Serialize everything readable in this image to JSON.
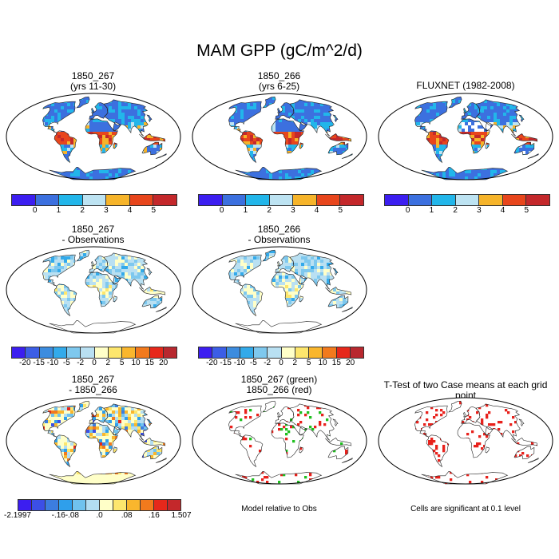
{
  "title": "MAM GPP (gC/m^2/d)",
  "panels": {
    "p1": {
      "line1": "1850_267",
      "line2": "(yrs 11-30)"
    },
    "p2": {
      "line1": "1850_266",
      "line2": "(yrs 6-25)"
    },
    "p3": {
      "line1": "FLUXNET (1982-2008)"
    },
    "p4": {
      "line1": "1850_267",
      "line2": "- Observations"
    },
    "p5": {
      "line1": "1850_266",
      "line2": "- Observations"
    },
    "p6": {
      "line1": "1850_267",
      "line2": "- 1850_266"
    },
    "p7": {
      "line1": "1850_267 (green)",
      "line2": "1850_266 (red)"
    },
    "p8": {
      "line1": "T-Test of two Case means at each grid point"
    }
  },
  "colorbars": {
    "abs": {
      "labels": [
        "0",
        "1",
        "2",
        "3",
        "4",
        "5"
      ],
      "colors": [
        "#3c1ef0",
        "#3c70df",
        "#22b6ea",
        "#bde3f2",
        "#f6b42a",
        "#e8461c",
        "#c4282b"
      ]
    },
    "diff": {
      "labels": [
        "-20",
        "-15",
        "-10",
        "-5",
        "-2",
        "0",
        "2",
        "5",
        "10",
        "15",
        "20"
      ],
      "colors": [
        "#3c1ef0",
        "#3c5ee6",
        "#3c8cdf",
        "#33aaea",
        "#7ec8ee",
        "#b9e0f2",
        "#ffffc8",
        "#fde66d",
        "#f9b62d",
        "#f27a1d",
        "#e6281b",
        "#b8282f"
      ]
    },
    "case": {
      "labels": [
        "-2.1997",
        "-.16",
        "-.08",
        ".0",
        ".08",
        ".16",
        "1.507"
      ],
      "colors": [
        "#3c1ef0",
        "#3c4fe6",
        "#3c7ddf",
        "#2f9feb",
        "#70c2ee",
        "#b3ddf2",
        "#ffffc8",
        "#fde66d",
        "#f9b62d",
        "#f27a1d",
        "#e6281b",
        "#c4282b"
      ]
    }
  },
  "notes": {
    "model_relative": "Model relative to Obs",
    "significance": "Cells are significant at 0.1 level"
  },
  "palette": {
    "ocean": "#ffffff",
    "outline": "#222222"
  }
}
